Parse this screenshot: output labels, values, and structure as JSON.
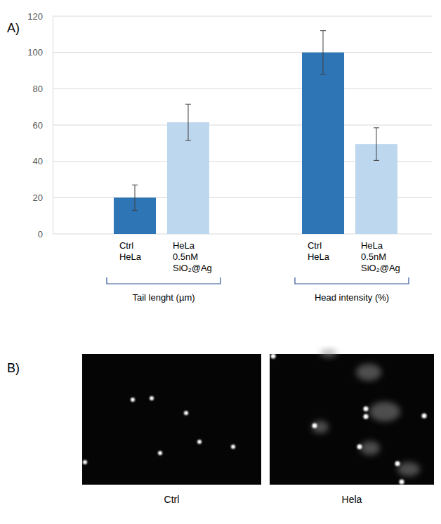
{
  "chart_data": {
    "type": "bar",
    "categories": [
      "Tail lenght (µm)",
      "Head intensity (%)"
    ],
    "series": [
      {
        "name": "Ctrl HeLa",
        "color": "#2e75b6",
        "values": [
          20,
          100
        ],
        "errors": [
          7,
          12
        ]
      },
      {
        "name": "HeLa 0.5nM SiO₂@Ag",
        "color": "#bdd7ee",
        "values": [
          61.5,
          49.5
        ],
        "errors": [
          10,
          9
        ]
      }
    ],
    "ylim": [
      0,
      120
    ],
    "yticks": [
      0,
      20,
      40,
      60,
      80,
      100,
      120
    ],
    "grid": true
  },
  "panel_labels": [
    "A)",
    "B)"
  ],
  "images": [
    {
      "label": "Ctrl"
    },
    {
      "label": "Hela"
    }
  ]
}
